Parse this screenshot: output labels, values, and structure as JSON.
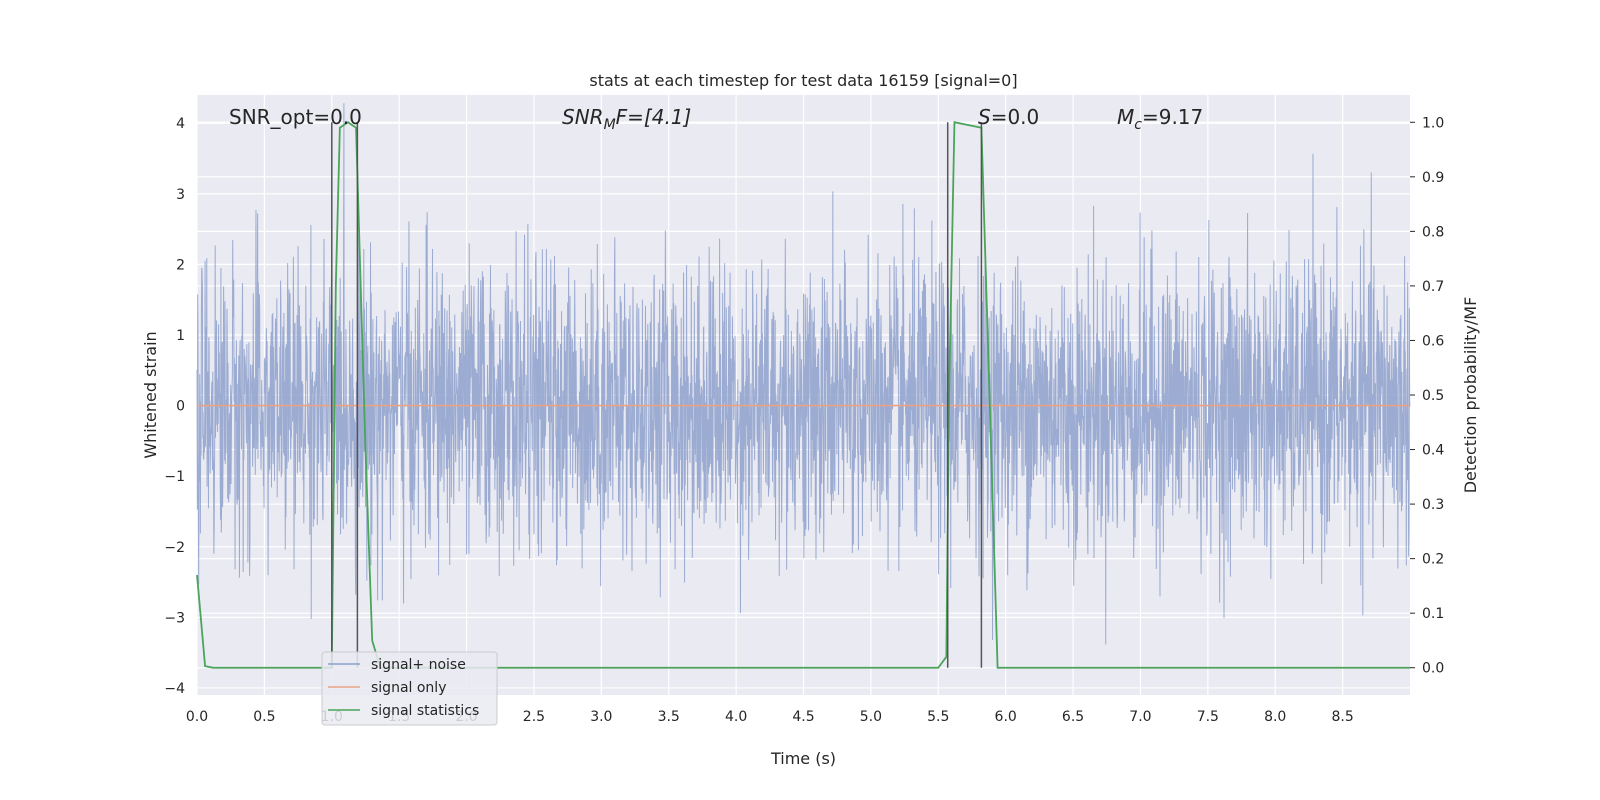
{
  "chart_data": {
    "type": "line",
    "title": "stats at each timestep for test data 16159 [signal=0]",
    "xlabel": "Time (s)",
    "ylabel_left": "Whitened strain",
    "ylabel_right": "Detection probability/MF",
    "xlim": [
      0,
      9.0
    ],
    "ylim_left": [
      -4.1,
      4.4
    ],
    "ylim_right": [
      -0.05,
      1.05
    ],
    "x_ticks": [
      0.0,
      0.5,
      1.0,
      1.5,
      2.0,
      2.5,
      3.0,
      3.5,
      4.0,
      4.5,
      5.0,
      5.5,
      6.0,
      6.5,
      7.0,
      7.5,
      8.0,
      8.5
    ],
    "x_tick_labels": [
      "0.0",
      "0.5",
      "1.0",
      "1.5",
      "2.0",
      "2.5",
      "3.0",
      "3.5",
      "4.0",
      "4.5",
      "5.0",
      "5.5",
      "6.0",
      "6.5",
      "7.0",
      "7.5",
      "8.0",
      "8.5"
    ],
    "y_left_ticks": [
      4,
      3,
      2,
      1,
      0,
      -1,
      -2,
      -3,
      -4
    ],
    "y_left_tick_labels": [
      "4",
      "3",
      "2",
      "1",
      "0",
      "−1",
      "−2",
      "−3",
      "−4"
    ],
    "y_right_ticks": [
      1.0,
      0.9,
      0.8,
      0.7,
      0.6,
      0.5,
      0.4,
      0.3,
      0.2,
      0.1,
      0.0
    ],
    "y_right_tick_labels": [
      "1.0",
      "0.9",
      "0.8",
      "0.7",
      "0.6",
      "0.5",
      "0.4",
      "0.3",
      "0.2",
      "0.1",
      "0.0"
    ],
    "grid": true,
    "legend_position": "lower-left",
    "annotations": {
      "snr_opt": "SNR_opt=0.0",
      "snr_mf_main": "SNR",
      "snr_mf_sub": "M",
      "snr_mf_rest": "F=[4.1]",
      "s_main": "S",
      "s_rest": "=0.0",
      "mc_main": "M",
      "mc_sub": "c",
      "mc_rest": "=9.17"
    },
    "series": [
      {
        "name": "signal+ noise",
        "axis": "left",
        "color": "#8da0cb",
        "kind": "noise",
        "seed": 16159,
        "envelope_std": 1.0,
        "x_range": [
          0,
          9.0
        ]
      },
      {
        "name": "signal only",
        "axis": "left",
        "color": "#e8a386",
        "x": [
          0.0,
          9.0
        ],
        "y": [
          0.0,
          0.0
        ]
      },
      {
        "name": "signal statistics",
        "axis": "right",
        "color": "#4aa45a",
        "x": [
          0.0,
          0.06,
          0.12,
          0.98,
          1.0,
          1.03,
          1.06,
          1.12,
          1.18,
          1.25,
          1.3,
          1.36,
          5.5,
          5.56,
          5.58,
          5.62,
          5.82,
          5.88,
          5.94,
          9.0
        ],
        "y": [
          0.17,
          0.003,
          0.0,
          0.0,
          0.0,
          0.7,
          0.99,
          1.0,
          0.99,
          0.4,
          0.05,
          0.0,
          0.0,
          0.02,
          0.5,
          1.0,
          0.99,
          0.5,
          0.0,
          0.0
        ]
      }
    ],
    "vertical_markers": [
      {
        "x": 1.0,
        "color": "#555555"
      },
      {
        "x": 1.19,
        "color": "#555555"
      },
      {
        "x": 5.57,
        "color": "#555555"
      },
      {
        "x": 5.82,
        "color": "#555555"
      }
    ]
  }
}
